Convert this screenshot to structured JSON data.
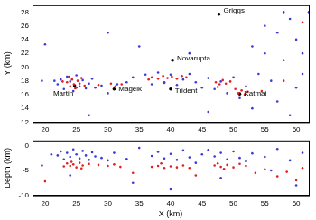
{
  "chart_data": [
    {
      "type": "scatter",
      "y_label": "Y (km)",
      "xlim": [
        18,
        62
      ],
      "xticks": [
        20,
        25,
        30,
        35,
        40,
        45,
        50,
        55,
        60
      ],
      "ylim": [
        12,
        29
      ],
      "yticks": [
        12,
        14,
        16,
        18,
        20,
        22,
        24,
        26,
        28
      ],
      "grid": false,
      "series": [
        {
          "color": "#3a3ad8",
          "marker": "circle",
          "x": [
            22,
            22.5,
            23,
            23.5,
            24,
            24.5,
            25,
            25.5,
            26,
            26.5,
            27,
            27.5,
            28,
            21.5,
            20,
            19.5,
            29,
            30,
            31.5,
            33,
            34,
            36,
            37,
            38,
            39,
            40,
            41,
            42,
            43,
            44,
            45,
            46,
            47,
            48,
            49,
            50,
            51,
            52,
            53,
            54,
            55,
            56,
            57,
            58,
            59,
            60,
            61,
            62,
            57,
            59,
            55,
            60,
            61,
            35,
            43,
            46,
            27,
            30,
            53,
            58
          ],
          "values": [
            17.5,
            18.2,
            16.8,
            18.6,
            17.9,
            16.5,
            18.8,
            17.2,
            18.1,
            16.9,
            17.6,
            18.3,
            17.0,
            18.0,
            23.3,
            18,
            17.3,
            16.2,
            17.5,
            17.8,
            18.5,
            18.9,
            17.5,
            19.2,
            17.8,
            18.9,
            17.4,
            18.2,
            19,
            17.8,
            17,
            18.4,
            16.8,
            17.9,
            16.2,
            18.5,
            15.5,
            17.2,
            14,
            19,
            22,
            18,
            25,
            21,
            27,
            24,
            19,
            28,
            15,
            13,
            26,
            17,
            22,
            23,
            22,
            13.5,
            13,
            25,
            23,
            28
          ]
        },
        {
          "color": "#e02020",
          "marker": "circle",
          "x": [
            23.5,
            24,
            24.3,
            24.6,
            25,
            25.2,
            25.5,
            25.8,
            24.8,
            23.8,
            26.3,
            22.8,
            28.5,
            30.5,
            31.2,
            32.2,
            37,
            38,
            38.8,
            39.5,
            40.2,
            41,
            41.8,
            42.5,
            36.5,
            39,
            47.2,
            47.8,
            48.3,
            48.8,
            47.5,
            50.3,
            50.8,
            51.3,
            51.8,
            52.3,
            49.5,
            54.5,
            58,
            61
          ],
          "values": [
            17.8,
            17.2,
            18.2,
            17.5,
            17,
            18,
            17.6,
            18.4,
            16.9,
            18.6,
            17.3,
            17.9,
            17.4,
            17.6,
            17.2,
            17.5,
            18.5,
            18.3,
            18.7,
            18.4,
            18.6,
            18.3,
            18.7,
            18.5,
            18.2,
            17.7,
            17.8,
            17.5,
            18.1,
            17.6,
            17.1,
            16.8,
            16.2,
            16.6,
            16.0,
            16.4,
            17.9,
            16.5,
            18,
            26.5
          ]
        },
        {
          "color": "#000000",
          "marker": "circle",
          "x": [
            24.7,
            31,
            40,
            40.3,
            51,
            47.7
          ],
          "values": [
            17.3,
            16.8,
            16.8,
            21,
            16.1,
            27.7
          ]
        }
      ],
      "annotations": [
        {
          "text": "Martin",
          "x": 21.3,
          "y": 16.2
        },
        {
          "text": "Mageik",
          "x": 31.7,
          "y": 16.8
        },
        {
          "text": "Trident",
          "x": 40.7,
          "y": 16.5
        },
        {
          "text": "Novarupta",
          "x": 41,
          "y": 21.3
        },
        {
          "text": "Katmai",
          "x": 51.7,
          "y": 16.1
        },
        {
          "text": "Griggs",
          "x": 48.4,
          "y": 28.2
        }
      ]
    },
    {
      "type": "scatter",
      "x_label": "X (km)",
      "y_label": "Depth (km)",
      "xlim": [
        18,
        62
      ],
      "xticks": [
        20,
        25,
        30,
        35,
        40,
        45,
        50,
        55,
        60
      ],
      "ylim": [
        -10,
        1
      ],
      "yticks": [
        -10,
        -5,
        0
      ],
      "grid": false,
      "series": [
        {
          "color": "#3a3ad8",
          "marker": "circle",
          "x": [
            22,
            22.5,
            23,
            23.5,
            24,
            24.5,
            25,
            25.5,
            26,
            26.5,
            27,
            27.5,
            28,
            21,
            29,
            30,
            31,
            33,
            35,
            37,
            38,
            39,
            40,
            41,
            42,
            43,
            44,
            45,
            46,
            47,
            48,
            49,
            50,
            51,
            52,
            53,
            55,
            57,
            59,
            61,
            24,
            34,
            40,
            48,
            56,
            60,
            19.5
          ],
          "values": [
            -2,
            -1.2,
            -2.8,
            -1.5,
            -2.3,
            -0.8,
            -1.8,
            -2.6,
            -1.1,
            -2,
            -2.9,
            -1.4,
            -2.2,
            -1.8,
            -2.5,
            -3,
            -1.5,
            -2.7,
            -0.5,
            -2.1,
            -1.3,
            -2.6,
            -1.7,
            -2.9,
            -1,
            -2.4,
            -3.5,
            -1.8,
            -0.9,
            -2.2,
            -1.5,
            -2.8,
            -1.2,
            -2.5,
            -3.2,
            -1.6,
            -2.3,
            -0.7,
            -3,
            -1.5,
            -6,
            -7.5,
            -8.8,
            -6.5,
            -5,
            -8,
            -4
          ]
        },
        {
          "color": "#e02020",
          "marker": "circle",
          "x": [
            23.5,
            24,
            24.5,
            25,
            25.5,
            26,
            24.2,
            25.8,
            23,
            27,
            28.5,
            30,
            31,
            32,
            37,
            38,
            39,
            40,
            41,
            42,
            43,
            38.5,
            47,
            47.5,
            48,
            49,
            50,
            51,
            52,
            48.5,
            53.5,
            55,
            57,
            58.5,
            60,
            61,
            20,
            34,
            44
          ],
          "values": [
            -3.6,
            -4.1,
            -3.8,
            -4.4,
            -3.5,
            -4.0,
            -3.3,
            -4.6,
            -4.2,
            -3.7,
            -3.9,
            -4.1,
            -3.8,
            -4.3,
            -4.3,
            -4.1,
            -4.5,
            -4.2,
            -4.4,
            -4.0,
            -4.5,
            -3.6,
            -4.0,
            -3.6,
            -4.3,
            -3.9,
            -4.4,
            -3.7,
            -4.1,
            -4.7,
            -5.5,
            -4.8,
            -6.2,
            -5.3,
            -7,
            -4.5,
            -7.2,
            -5.5,
            -6
          ]
        }
      ]
    }
  ]
}
